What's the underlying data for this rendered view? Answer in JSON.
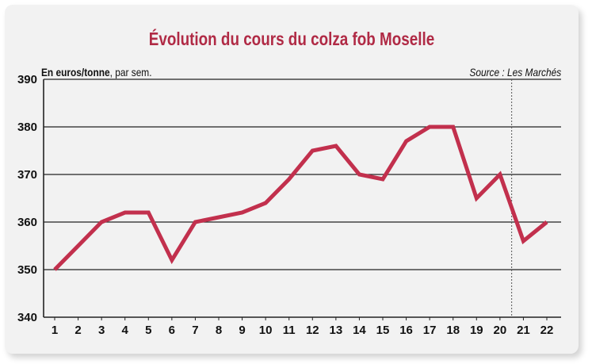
{
  "colors": {
    "line": "#c2304d",
    "title": "#b02a45",
    "grid": "#222222",
    "background": "#f2f2f2"
  },
  "chart_data": {
    "type": "line",
    "title": "Évolution du cours du colza fob Moselle",
    "unit_bold": "En euros/tonne",
    "unit_rest": ", par sem.",
    "source": "Source : Les Marchés",
    "xlabel": "",
    "ylabel": "",
    "ylim": [
      340,
      390
    ],
    "yticks": [
      340,
      350,
      360,
      370,
      380,
      390
    ],
    "grid": true,
    "separator_after_x": 20,
    "x": [
      1,
      2,
      3,
      4,
      5,
      6,
      7,
      8,
      9,
      10,
      11,
      12,
      13,
      14,
      15,
      16,
      17,
      18,
      19,
      20,
      21,
      22
    ],
    "series": [
      {
        "values": [
          350,
          355,
          360,
          362,
          362,
          352,
          360,
          361,
          362,
          364,
          369,
          375,
          376,
          370,
          369,
          377,
          380,
          380,
          365,
          370,
          356,
          360
        ]
      }
    ]
  }
}
